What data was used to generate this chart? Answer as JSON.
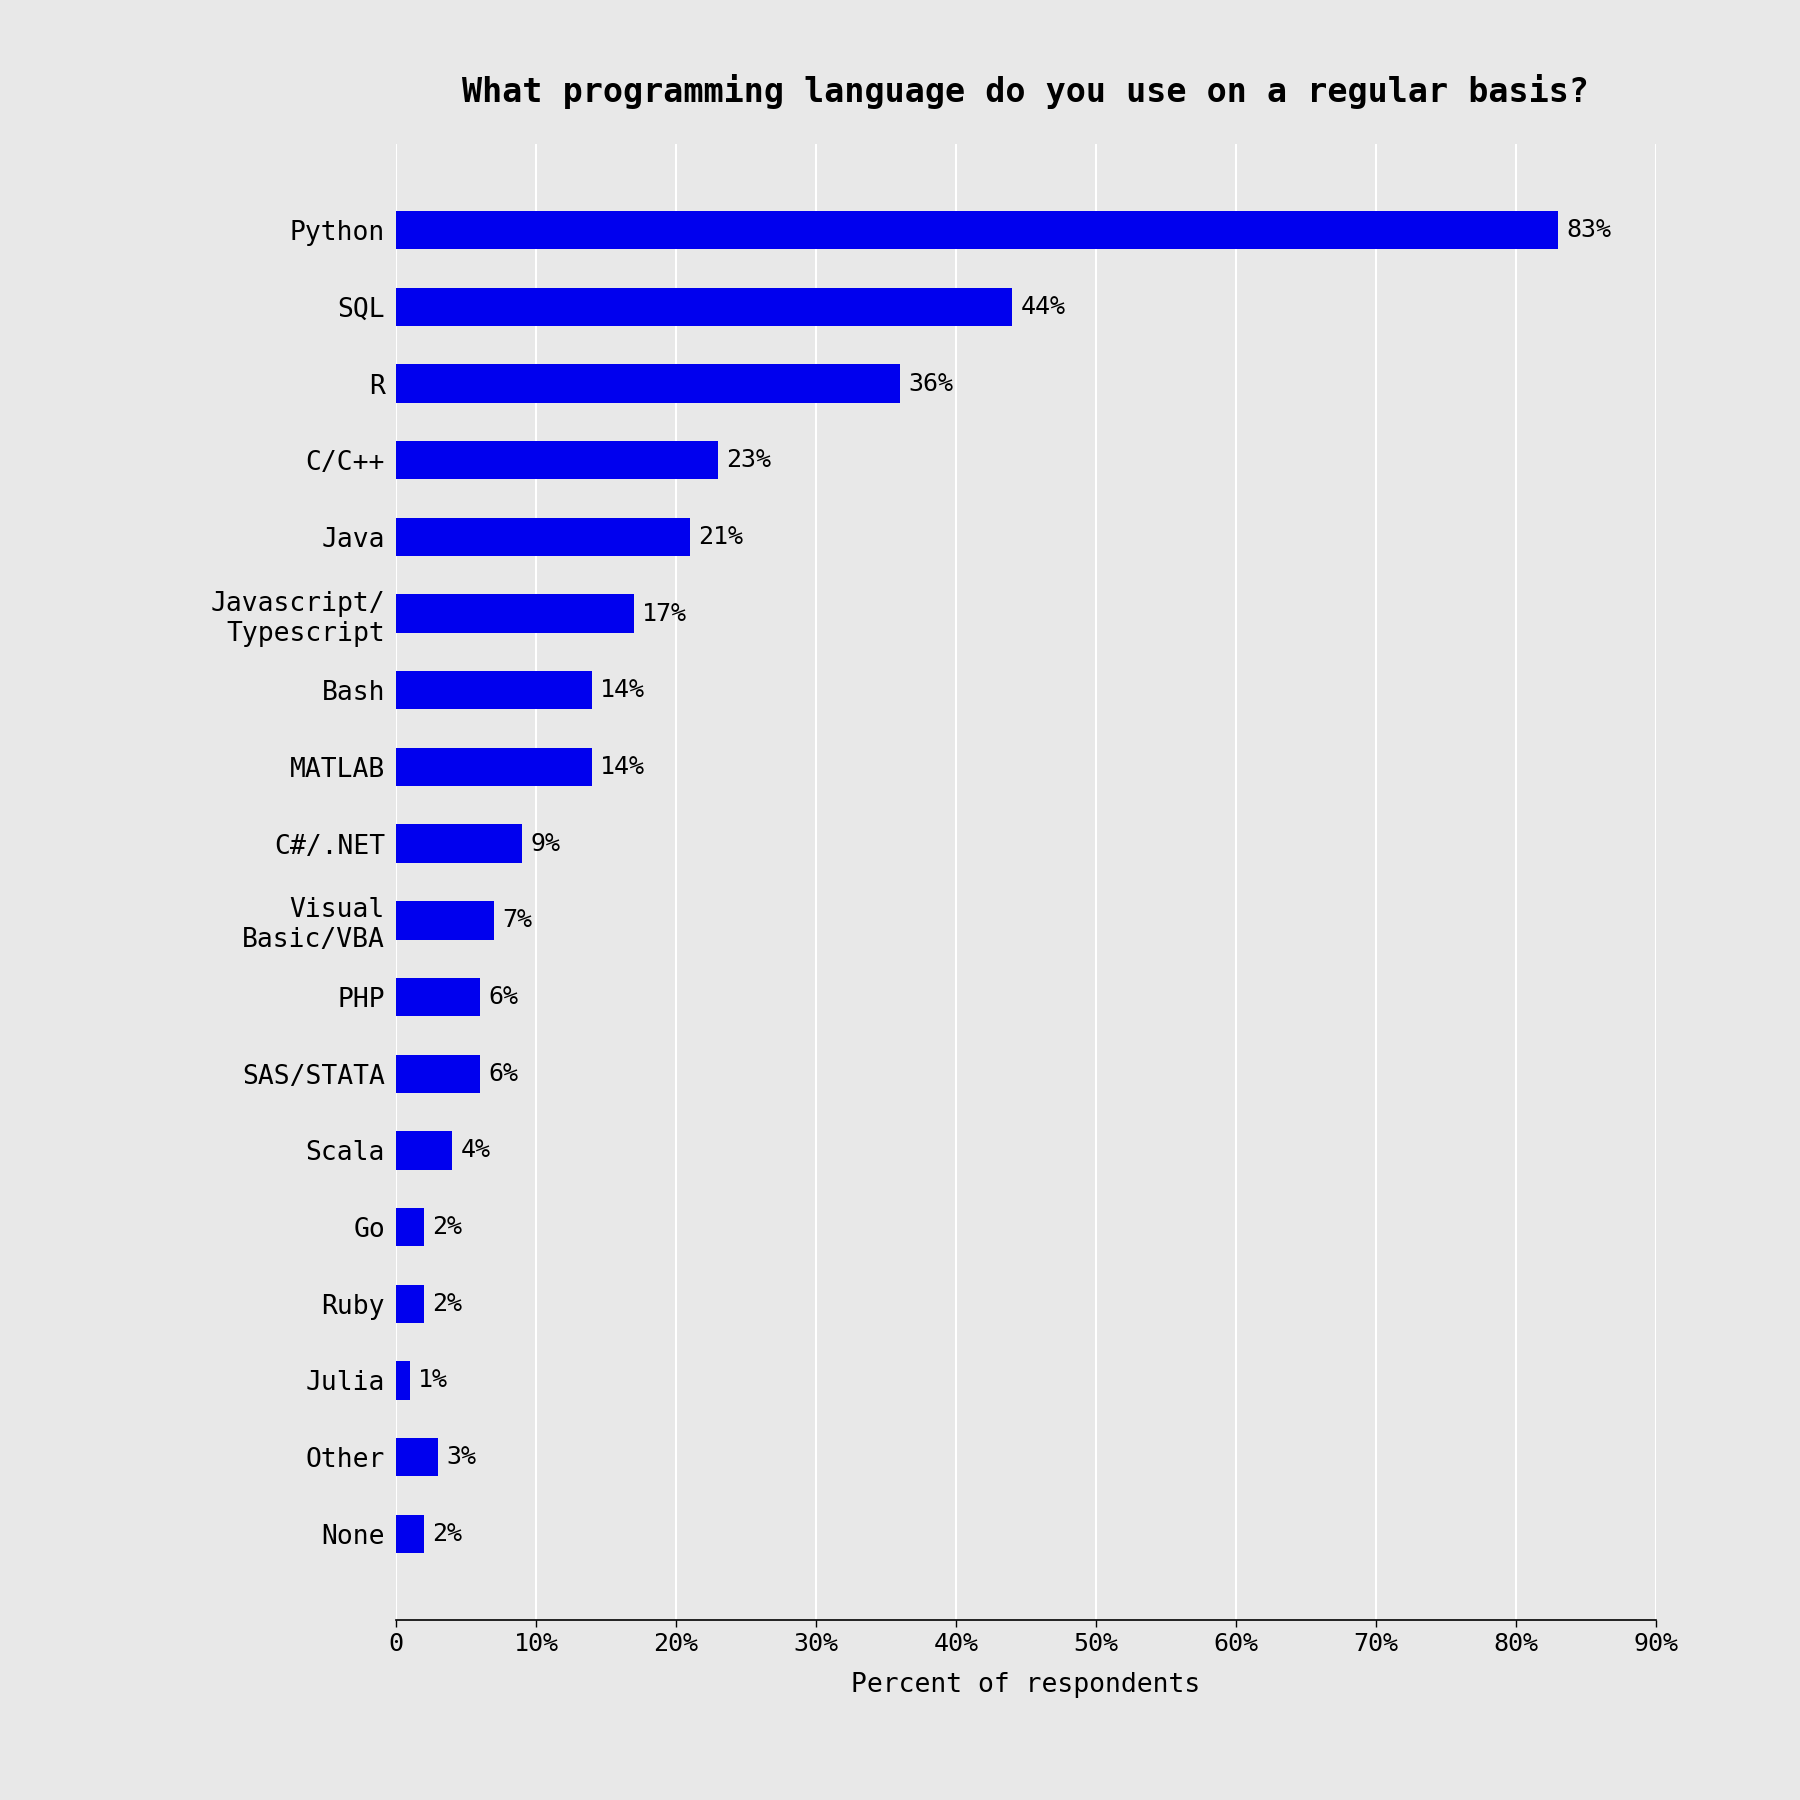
{
  "title": "What programming language do you use on a regular basis?",
  "xlabel": "Percent of respondents",
  "categories": [
    "Python",
    "SQL",
    "R",
    "C/C++",
    "Java",
    "Javascript/\nTypescript",
    "Bash",
    "MATLAB",
    "C#/.NET",
    "Visual\nBasic/VBA",
    "PHP",
    "SAS/STATA",
    "Scala",
    "Go",
    "Ruby",
    "Julia",
    "Other",
    "None"
  ],
  "values": [
    83,
    44,
    36,
    23,
    21,
    17,
    14,
    14,
    9,
    7,
    6,
    6,
    4,
    2,
    2,
    1,
    3,
    2
  ],
  "bar_color": "#0000EE",
  "background_color": "#E8E8E8",
  "xlim": [
    0,
    90
  ],
  "xticks": [
    0,
    10,
    20,
    30,
    40,
    50,
    60,
    70,
    80,
    90
  ],
  "xtick_labels": [
    "0",
    "10%",
    "20%",
    "30%",
    "40%",
    "50%",
    "60%",
    "70%",
    "80%",
    "90%"
  ],
  "title_fontsize": 24,
  "label_fontsize": 19,
  "tick_fontsize": 18,
  "value_fontsize": 18,
  "bar_height": 0.5
}
